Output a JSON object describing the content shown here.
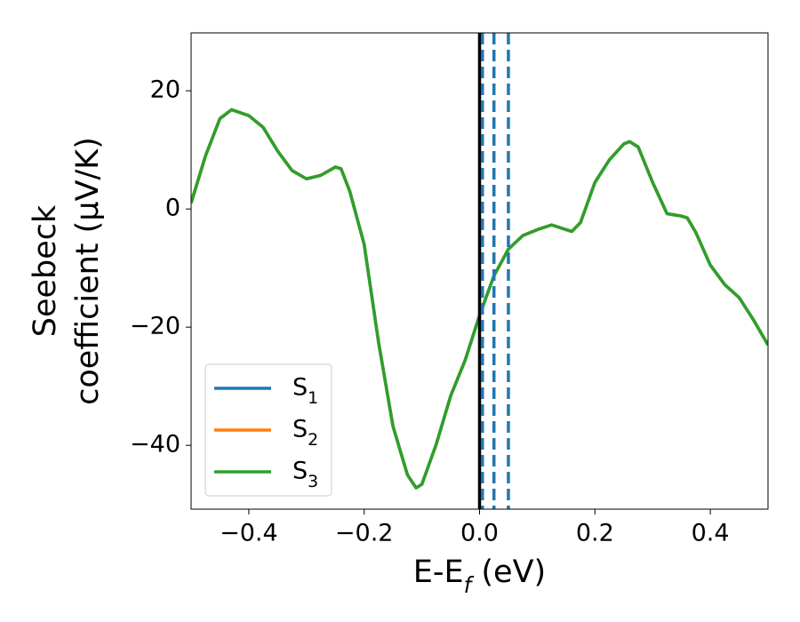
{
  "chart_data": {
    "type": "line",
    "xlabel": "E-E_f (eV)",
    "ylabel": [
      "Seebeck",
      "coefficient  (μV/K)"
    ],
    "x": [
      -0.5,
      -0.475,
      -0.45,
      -0.43,
      -0.4,
      -0.375,
      -0.35,
      -0.325,
      -0.3,
      -0.275,
      -0.25,
      -0.24,
      -0.225,
      -0.2,
      -0.175,
      -0.15,
      -0.125,
      -0.11,
      -0.1,
      -0.075,
      -0.05,
      -0.025,
      0,
      0.025,
      0.05,
      0.075,
      0.1,
      0.125,
      0.15,
      0.16,
      0.175,
      0.2,
      0.225,
      0.25,
      0.26,
      0.275,
      0.3,
      0.325,
      0.35,
      0.36,
      0.375,
      0.4,
      0.425,
      0.45,
      0.475,
      0.5
    ],
    "series": [
      {
        "name": "S_1",
        "color": "#1f77b4",
        "values": [
          1.0,
          9,
          15.3,
          16.8,
          15.8,
          13.8,
          9.8,
          6.5,
          5.1,
          5.7,
          7.1,
          6.8,
          3,
          -6,
          -22.6,
          -36.8,
          -45,
          -47.2,
          -46.6,
          -39.8,
          -31.6,
          -25.6,
          -18,
          -11.3,
          -6.8,
          -4.5,
          -3.5,
          -2.7,
          -3.5,
          -3.8,
          -2.3,
          4.5,
          8.3,
          11,
          11.4,
          10.5,
          4.5,
          -0.8,
          -1.2,
          -1.5,
          -4,
          -9.5,
          -12.8,
          -15,
          -18.8,
          -23
        ]
      },
      {
        "name": "S_2",
        "color": "#ff7f0e",
        "values": [
          1.0,
          9,
          15.3,
          16.8,
          15.8,
          13.8,
          9.8,
          6.5,
          5.1,
          5.7,
          7.1,
          6.8,
          3,
          -6,
          -22.6,
          -36.8,
          -45,
          -47.2,
          -46.6,
          -39.8,
          -31.6,
          -25.6,
          -18,
          -11.3,
          -6.8,
          -4.5,
          -3.5,
          -2.7,
          -3.5,
          -3.8,
          -2.3,
          4.5,
          8.3,
          11,
          11.4,
          10.5,
          4.5,
          -0.8,
          -1.2,
          -1.5,
          -4,
          -9.5,
          -12.8,
          -15,
          -18.8,
          -23
        ]
      },
      {
        "name": "S_3",
        "color": "#2ca02c",
        "values": [
          1.0,
          9,
          15.3,
          16.8,
          15.8,
          13.8,
          9.8,
          6.5,
          5.1,
          5.7,
          7.1,
          6.8,
          3,
          -6,
          -22.6,
          -36.8,
          -45,
          -47.2,
          -46.6,
          -39.8,
          -31.6,
          -25.6,
          -18,
          -11.3,
          -6.8,
          -4.5,
          -3.5,
          -2.7,
          -3.5,
          -3.8,
          -2.3,
          4.5,
          8.3,
          11,
          11.4,
          10.5,
          4.5,
          -0.8,
          -1.2,
          -1.5,
          -4,
          -9.5,
          -12.8,
          -15,
          -18.8,
          -23
        ]
      }
    ],
    "vlines": [
      {
        "x": 0,
        "color": "#000000",
        "style": "solid"
      },
      {
        "x": 0.005,
        "color": "#1f77b4",
        "style": "dashed"
      },
      {
        "x": 0.025,
        "color": "#1f77b4",
        "style": "dashed"
      },
      {
        "x": 0.05,
        "color": "#1f77b4",
        "style": "dashed"
      }
    ],
    "xlim": [
      -0.5,
      0.5
    ],
    "ylim": [
      -50.8,
      29.8
    ],
    "xticks": [
      {
        "value": -0.4,
        "label": "−0.4"
      },
      {
        "value": -0.2,
        "label": "−0.2"
      },
      {
        "value": 0,
        "label": "0.0"
      },
      {
        "value": 0.2,
        "label": "0.2"
      },
      {
        "value": 0.4,
        "label": "0.4"
      }
    ],
    "yticks": [
      {
        "value": -40,
        "label": "−40"
      },
      {
        "value": -20,
        "label": "−20"
      },
      0,
      20
    ],
    "legend": "lower left"
  }
}
